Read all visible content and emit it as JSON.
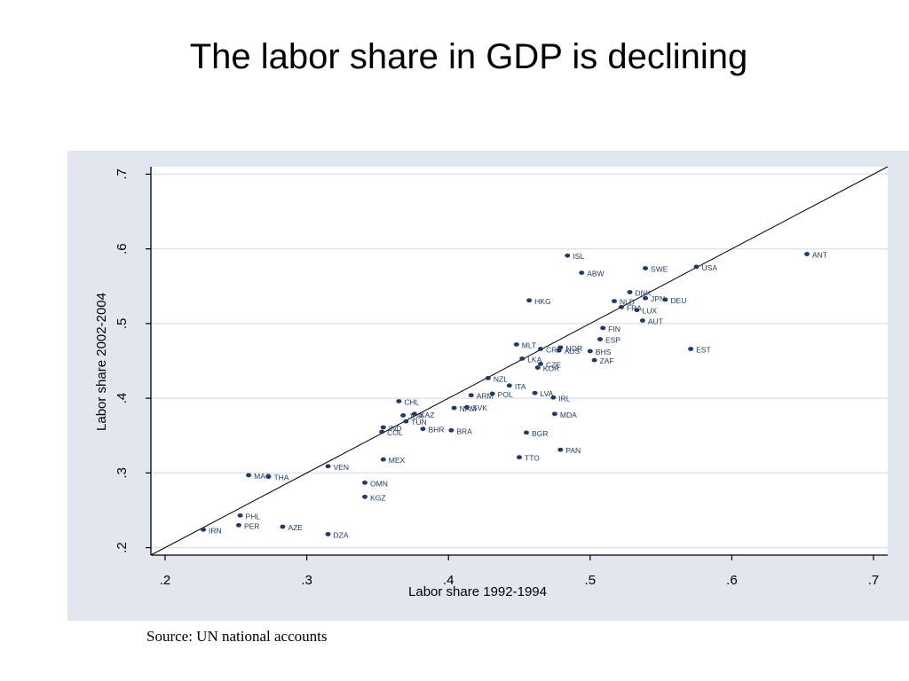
{
  "slide": {
    "title": "The labor share in GDP is declining",
    "source": "Source: UN national accounts"
  },
  "colors": {
    "panel_background": "#e1e6ef",
    "plot_background": "#ffffff",
    "marker": "#1f3a68",
    "gridline": "#dfe4ec",
    "diagonal_line": "#000000"
  },
  "chart_data": {
    "type": "scatter",
    "xlabel": "Labor share 1992-1994",
    "ylabel": "Labor share 2002-2004",
    "xlim": [
      0.19,
      0.71
    ],
    "ylim": [
      0.19,
      0.71
    ],
    "x_ticks": [
      0.2,
      0.3,
      0.4,
      0.5,
      0.6,
      0.7
    ],
    "x_tick_labels": [
      ".2",
      ".3",
      ".4",
      ".5",
      ".6",
      ".7"
    ],
    "y_ticks": [
      0.2,
      0.3,
      0.4,
      0.5,
      0.6,
      0.7
    ],
    "y_tick_labels": [
      ".2",
      ".3",
      ".4",
      ".5",
      ".6",
      ".7"
    ],
    "grid": "horizontal",
    "reference_line": "45-degree (y = x)",
    "points": [
      {
        "label": "ANT",
        "x": 0.653,
        "y": 0.593
      },
      {
        "label": "ISL",
        "x": 0.484,
        "y": 0.591
      },
      {
        "label": "USA",
        "x": 0.575,
        "y": 0.576
      },
      {
        "label": "SWE",
        "x": 0.539,
        "y": 0.574
      },
      {
        "label": "ABW",
        "x": 0.494,
        "y": 0.568
      },
      {
        "label": "DNK",
        "x": 0.528,
        "y": 0.542
      },
      {
        "label": "JPN",
        "x": 0.539,
        "y": 0.534
      },
      {
        "label": "DEU",
        "x": 0.553,
        "y": 0.532
      },
      {
        "label": "HKG",
        "x": 0.457,
        "y": 0.531
      },
      {
        "label": "NLD",
        "x": 0.517,
        "y": 0.53
      },
      {
        "label": "FRA",
        "x": 0.522,
        "y": 0.522
      },
      {
        "label": "LUX",
        "x": 0.533,
        "y": 0.518
      },
      {
        "label": "AUT",
        "x": 0.537,
        "y": 0.504
      },
      {
        "label": "FIN",
        "x": 0.509,
        "y": 0.494
      },
      {
        "label": "ESP",
        "x": 0.507,
        "y": 0.479
      },
      {
        "label": "MLT",
        "x": 0.448,
        "y": 0.472
      },
      {
        "label": "CRI",
        "x": 0.465,
        "y": 0.466
      },
      {
        "label": "NOR",
        "x": 0.479,
        "y": 0.468
      },
      {
        "label": "AUS",
        "x": 0.478,
        "y": 0.464
      },
      {
        "label": "BHS",
        "x": 0.5,
        "y": 0.463
      },
      {
        "label": "EST",
        "x": 0.571,
        "y": 0.466
      },
      {
        "label": "LKA",
        "x": 0.452,
        "y": 0.453
      },
      {
        "label": "ZAF",
        "x": 0.503,
        "y": 0.451
      },
      {
        "label": "CZE",
        "x": 0.465,
        "y": 0.446
      },
      {
        "label": "KOR",
        "x": 0.463,
        "y": 0.441
      },
      {
        "label": "NZL",
        "x": 0.428,
        "y": 0.427
      },
      {
        "label": "ITA",
        "x": 0.443,
        "y": 0.417
      },
      {
        "label": "ARM",
        "x": 0.416,
        "y": 0.404
      },
      {
        "label": "POL",
        "x": 0.431,
        "y": 0.406
      },
      {
        "label": "LVA",
        "x": 0.461,
        "y": 0.407
      },
      {
        "label": "IRL",
        "x": 0.474,
        "y": 0.401
      },
      {
        "label": "CHL",
        "x": 0.365,
        "y": 0.396
      },
      {
        "label": "NAM",
        "x": 0.404,
        "y": 0.387
      },
      {
        "label": "SVK",
        "x": 0.413,
        "y": 0.388
      },
      {
        "label": "MDA",
        "x": 0.475,
        "y": 0.379
      },
      {
        "label": "JOR",
        "x": 0.368,
        "y": 0.377
      },
      {
        "label": "KAZ",
        "x": 0.376,
        "y": 0.379
      },
      {
        "label": "TUN",
        "x": 0.37,
        "y": 0.369
      },
      {
        "label": "IND",
        "x": 0.354,
        "y": 0.361
      },
      {
        "label": "COL",
        "x": 0.353,
        "y": 0.355
      },
      {
        "label": "BHR",
        "x": 0.382,
        "y": 0.359
      },
      {
        "label": "BRA",
        "x": 0.402,
        "y": 0.357
      },
      {
        "label": "BGR",
        "x": 0.455,
        "y": 0.354
      },
      {
        "label": "PAN",
        "x": 0.479,
        "y": 0.331
      },
      {
        "label": "TTO",
        "x": 0.45,
        "y": 0.321
      },
      {
        "label": "MEX",
        "x": 0.354,
        "y": 0.318
      },
      {
        "label": "VEN",
        "x": 0.315,
        "y": 0.309
      },
      {
        "label": "MAC",
        "x": 0.259,
        "y": 0.297
      },
      {
        "label": "THA",
        "x": 0.273,
        "y": 0.295
      },
      {
        "label": "OMN",
        "x": 0.341,
        "y": 0.287
      },
      {
        "label": "KGZ",
        "x": 0.341,
        "y": 0.268
      },
      {
        "label": "PHL",
        "x": 0.253,
        "y": 0.243
      },
      {
        "label": "PER",
        "x": 0.252,
        "y": 0.23
      },
      {
        "label": "AZE",
        "x": 0.283,
        "y": 0.228
      },
      {
        "label": "IRN",
        "x": 0.227,
        "y": 0.224
      },
      {
        "label": "DZA",
        "x": 0.315,
        "y": 0.218
      }
    ]
  }
}
